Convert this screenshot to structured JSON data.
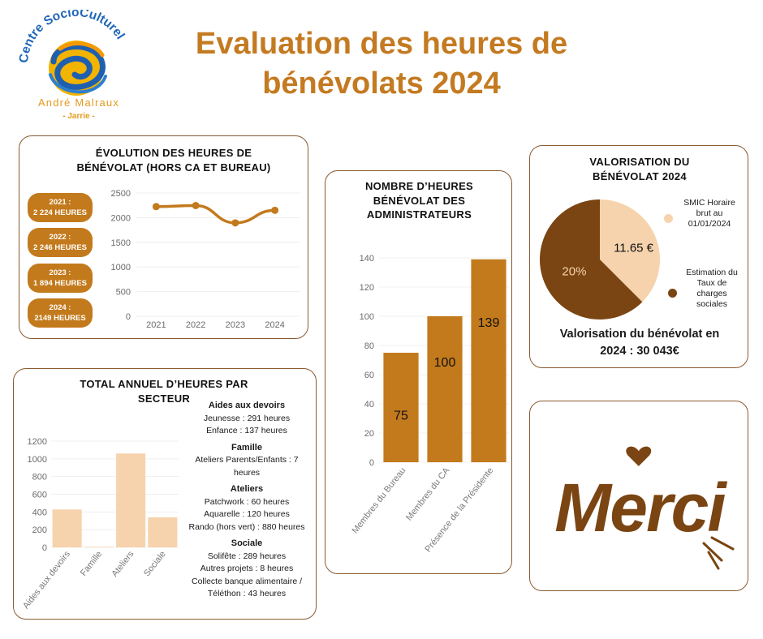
{
  "logo": {
    "arc_text": "Centre SocioCulturel",
    "name": "André Malraux",
    "place": "- Jarrie -"
  },
  "title": {
    "line1": "Evaluation des heures de",
    "line2": "bénévolats 2024"
  },
  "colors": {
    "accent": "#c47a21",
    "dark_brown": "#7a4512",
    "light_peach": "#f6d3ad",
    "border": "#8a5a30"
  },
  "evolution": {
    "title_line1": "ÉVOLUTION DES HEURES DE",
    "title_line2": "BÉNÉVOLAT (HORS CA ET BUREAU)",
    "pills": [
      {
        "year": "2021 :",
        "hours": "2 224 HEURES"
      },
      {
        "year": "2022 :",
        "hours": "2 246 HEURES"
      },
      {
        "year": "2023 :",
        "hours": "1 894 HEURES"
      },
      {
        "year": "2024 :",
        "hours": "2149 HEURES"
      }
    ]
  },
  "sector": {
    "title_line1": "TOTAL ANNUEL D’HEURES PAR",
    "title_line2": "SECTEUR",
    "groups": [
      {
        "head": "Aides aux devoirs",
        "lines": [
          "Jeunesse : 291 heures",
          "Enfance : 137 heures"
        ]
      },
      {
        "head": "Famille",
        "lines": [
          "Ateliers Parents/Enfants : 7",
          "heures"
        ]
      },
      {
        "head": "Ateliers",
        "lines": [
          "Patchwork : 60 heures",
          "Aquarelle : 120 heures",
          "Rando (hors vert) : 880 heures"
        ]
      },
      {
        "head": "Sociale",
        "lines": [
          "Solifête : 289 heures",
          "Autres projets : 8 heures",
          "Collecte banque alimentaire /",
          "Téléthon : 43 heures"
        ]
      }
    ]
  },
  "admin": {
    "title_line1": "NOMBRE D’HEURES",
    "title_line2": "BÉNÉVOLAT DES",
    "title_line3": "ADMINISTRATEURS"
  },
  "valor": {
    "title_line1": "VALORISATION DU",
    "title_line2": "BÉNÉVOLAT 2024",
    "legend": [
      {
        "label_line1": "SMIC Horaire",
        "label_line2": "brut au",
        "label_line3": "01/01/2024"
      },
      {
        "label_line1": "Estimation du",
        "label_line2": "Taux de",
        "label_line3": "charges",
        "label_line4": "sociales"
      }
    ],
    "slice_labels": [
      "11.65 €",
      "20%"
    ],
    "total_line1": "Valorisation du bénévolat en",
    "total_line2": "2024 : 30 043€"
  },
  "merci": {
    "text": "Merci"
  },
  "chart_data": [
    {
      "type": "line",
      "title": "ÉVOLUTION DES HEURES DE BÉNÉVOLAT (HORS CA ET BUREAU)",
      "x": [
        "2021",
        "2022",
        "2023",
        "2024"
      ],
      "values": [
        2224,
        2246,
        1894,
        2149
      ],
      "y_ticks": [
        0,
        500,
        1000,
        1500,
        2000,
        2500
      ],
      "ylim": [
        0,
        2500
      ],
      "grid": true,
      "color": "#c37a1c"
    },
    {
      "type": "bar",
      "title": "TOTAL ANNUEL D’HEURES PAR SECTEUR",
      "categories": [
        "Aides aux devoirs",
        "Famille",
        "Ateliers",
        "Sociale"
      ],
      "values": [
        428,
        7,
        1060,
        340
      ],
      "y_ticks": [
        0,
        200,
        400,
        600,
        800,
        1000,
        1200
      ],
      "ylim": [
        0,
        1200
      ],
      "grid": true,
      "color": "#f6d3ad"
    },
    {
      "type": "bar",
      "title": "NOMBRE D’HEURES BÉNÉVOLAT DES ADMINISTRATEURS",
      "categories": [
        "Membres du Bureau",
        "Membres du CA",
        "Présence de la Présidente"
      ],
      "values": [
        75,
        100,
        139
      ],
      "data_labels": [
        "75",
        "100",
        "139"
      ],
      "y_ticks": [
        0,
        20,
        40,
        60,
        80,
        100,
        120,
        140
      ],
      "ylim": [
        0,
        140
      ],
      "grid": true,
      "color": "#c37a1c"
    },
    {
      "type": "pie",
      "title": "VALORISATION DU BÉNÉVOLAT 2024",
      "slices": [
        {
          "label": "SMIC Horaire brut au 01/01/2024",
          "value": 11.65,
          "share": 0.375,
          "color": "#f6d3ad"
        },
        {
          "label": "Estimation du Taux de charges sociales",
          "value": 20,
          "share": 0.625,
          "color": "#7a4512"
        }
      ]
    }
  ]
}
